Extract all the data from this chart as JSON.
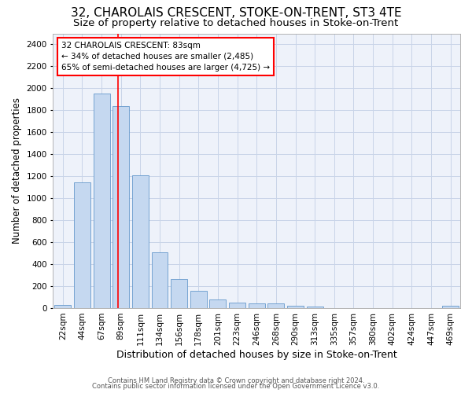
{
  "title1": "32, CHAROLAIS CRESCENT, STOKE-ON-TRENT, ST3 4TE",
  "title2": "Size of property relative to detached houses in Stoke-on-Trent",
  "xlabel": "Distribution of detached houses by size in Stoke-on-Trent",
  "ylabel": "Number of detached properties",
  "bar_labels": [
    "22sqm",
    "44sqm",
    "67sqm",
    "89sqm",
    "111sqm",
    "134sqm",
    "156sqm",
    "178sqm",
    "201sqm",
    "223sqm",
    "246sqm",
    "268sqm",
    "290sqm",
    "313sqm",
    "335sqm",
    "357sqm",
    "380sqm",
    "402sqm",
    "424sqm",
    "447sqm",
    "469sqm"
  ],
  "bar_values": [
    30,
    1145,
    1950,
    1835,
    1210,
    510,
    265,
    155,
    80,
    50,
    45,
    40,
    20,
    15,
    0,
    0,
    0,
    0,
    0,
    0,
    20
  ],
  "bar_color": "#c5d8f0",
  "bar_edge_color": "#6699cc",
  "ylim": [
    0,
    2500
  ],
  "yticks": [
    0,
    200,
    400,
    600,
    800,
    1000,
    1200,
    1400,
    1600,
    1800,
    2000,
    2200,
    2400
  ],
  "property_label": "32 CHAROLAIS CRESCENT: 83sqm",
  "annotation_line1": "← 34% of detached houses are smaller (2,485)",
  "annotation_line2": "65% of semi-detached houses are larger (4,725) →",
  "vline_x_index": 2.85,
  "footer1": "Contains HM Land Registry data © Crown copyright and database right 2024.",
  "footer2": "Contains public sector information licensed under the Open Government Licence v3.0.",
  "background_color": "#eef2fa",
  "grid_color": "#c8d4e8",
  "title1_fontsize": 11,
  "title2_fontsize": 9.5,
  "xlabel_fontsize": 9,
  "ylabel_fontsize": 8.5,
  "tick_fontsize": 7.5,
  "annot_fontsize": 7.5,
  "footer_fontsize": 6
}
